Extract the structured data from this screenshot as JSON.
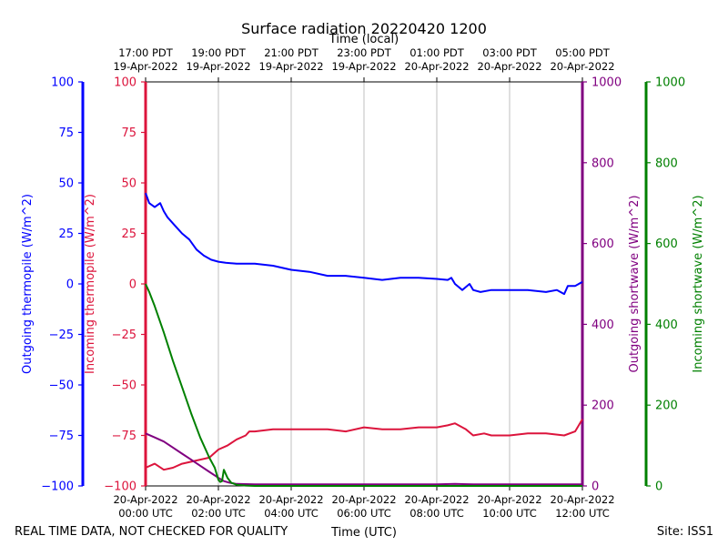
{
  "chart_data": {
    "type": "line",
    "title": "Surface radiation 20220420 1200",
    "top_axis_label": "Time (local)",
    "xlabel": "Time (UTC)",
    "footer_left": "REAL TIME DATA, NOT CHECKED FOR QUALITY",
    "footer_right": "Site: ISS1",
    "x_range_hours": [
      0,
      12
    ],
    "grid": "vertical",
    "x_ticks": [
      {
        "hour": 0,
        "utc": [
          "20-Apr-2022",
          "00:00 UTC"
        ],
        "local": [
          "17:00 PDT",
          "19-Apr-2022"
        ]
      },
      {
        "hour": 2,
        "utc": [
          "20-Apr-2022",
          "02:00 UTC"
        ],
        "local": [
          "19:00 PDT",
          "19-Apr-2022"
        ]
      },
      {
        "hour": 4,
        "utc": [
          "20-Apr-2022",
          "04:00 UTC"
        ],
        "local": [
          "21:00 PDT",
          "19-Apr-2022"
        ]
      },
      {
        "hour": 6,
        "utc": [
          "20-Apr-2022",
          "06:00 UTC"
        ],
        "local": [
          "23:00 PDT",
          "19-Apr-2022"
        ]
      },
      {
        "hour": 8,
        "utc": [
          "20-Apr-2022",
          "08:00 UTC"
        ],
        "local": [
          "01:00 PDT",
          "20-Apr-2022"
        ]
      },
      {
        "hour": 10,
        "utc": [
          "20-Apr-2022",
          "10:00 UTC"
        ],
        "local": [
          "03:00 PDT",
          "20-Apr-2022"
        ]
      },
      {
        "hour": 12,
        "utc": [
          "20-Apr-2022",
          "12:00 UTC"
        ],
        "local": [
          "05:00 PDT",
          "20-Apr-2022"
        ]
      }
    ],
    "axes": {
      "outgoing_thermopile": {
        "label": "Outgoing thermopile (W/m^2)",
        "color": "#0000ff",
        "ylim": [
          -100,
          100
        ],
        "ticks": [
          100,
          75,
          50,
          25,
          0,
          -25,
          -50,
          -75,
          -100
        ],
        "tick_labels": [
          "100",
          "75",
          "50",
          "25",
          "0",
          "−25",
          "−50",
          "−75",
          "−100"
        ]
      },
      "incoming_thermopile": {
        "label": "Incoming thermopile (W/m^2)",
        "color": "#dc143c",
        "ylim": [
          -100,
          100
        ],
        "ticks": [
          100,
          75,
          50,
          25,
          0,
          -25,
          -50,
          -75,
          -100
        ],
        "tick_labels": [
          "100",
          "75",
          "50",
          "25",
          "0",
          "−25",
          "−50",
          "−75",
          "−100"
        ]
      },
      "outgoing_shortwave": {
        "label": "Outgoing shortwave (W/m^2)",
        "color": "#800080",
        "ylim": [
          0,
          1000
        ],
        "ticks": [
          1000,
          800,
          600,
          400,
          200,
          0
        ],
        "tick_labels": [
          "1000",
          "800",
          "600",
          "400",
          "200",
          "0"
        ]
      },
      "incoming_shortwave": {
        "label": "Incoming shortwave (W/m^2)",
        "color": "#008000",
        "ylim": [
          0,
          1000
        ],
        "ticks": [
          1000,
          800,
          600,
          400,
          200,
          0
        ],
        "tick_labels": [
          "1000",
          "800",
          "600",
          "400",
          "200",
          "0"
        ]
      }
    },
    "series": [
      {
        "name": "Outgoing thermopile",
        "axis": "outgoing_thermopile",
        "color": "#0000ff",
        "x": [
          0,
          0.1,
          0.25,
          0.4,
          0.5,
          0.6,
          0.75,
          0.9,
          1.0,
          1.2,
          1.4,
          1.6,
          1.8,
          2.0,
          2.2,
          2.5,
          3.0,
          3.5,
          4.0,
          4.5,
          5.0,
          5.5,
          6.0,
          6.5,
          7.0,
          7.5,
          8.0,
          8.3,
          8.4,
          8.5,
          8.7,
          8.9,
          9.0,
          9.2,
          9.5,
          10.0,
          10.5,
          11.0,
          11.3,
          11.5,
          11.6,
          11.8,
          12.0
        ],
        "y": [
          45,
          40,
          38,
          40,
          36,
          33,
          30,
          27,
          25,
          22,
          17,
          14,
          12,
          11,
          10.5,
          10,
          10,
          9,
          7,
          6,
          4,
          4,
          3,
          2,
          3,
          3,
          2.5,
          2,
          3,
          0,
          -3,
          0,
          -3,
          -4,
          -3,
          -3,
          -3,
          -4,
          -3,
          -5,
          -1,
          -1,
          1
        ]
      },
      {
        "name": "Incoming thermopile",
        "axis": "incoming_thermopile",
        "color": "#dc143c",
        "x": [
          0,
          0.25,
          0.5,
          0.75,
          1.0,
          1.25,
          1.5,
          1.75,
          2.0,
          2.25,
          2.5,
          2.75,
          2.85,
          3.0,
          3.5,
          4.0,
          4.5,
          5.0,
          5.5,
          6.0,
          6.5,
          7.0,
          7.5,
          8.0,
          8.3,
          8.5,
          8.8,
          9.0,
          9.3,
          9.5,
          10.0,
          10.5,
          11.0,
          11.5,
          11.8,
          12.0
        ],
        "y": [
          -91,
          -89,
          -92,
          -91,
          -89,
          -88,
          -87,
          -86,
          -82,
          -80,
          -77,
          -75,
          -73,
          -73,
          -72,
          -72,
          -72,
          -72,
          -73,
          -71,
          -72,
          -72,
          -71,
          -71,
          -70,
          -69,
          -72,
          -75,
          -74,
          -75,
          -75,
          -74,
          -74,
          -75,
          -73,
          -67
        ]
      },
      {
        "name": "Outgoing shortwave",
        "axis": "outgoing_shortwave",
        "color": "#800080",
        "x": [
          0,
          0.25,
          0.5,
          0.75,
          1.0,
          1.25,
          1.5,
          1.75,
          2.0,
          2.15,
          2.3,
          2.5,
          3.0,
          4.0,
          5.0,
          6.0,
          7.0,
          8.0,
          8.5,
          9.0,
          10.0,
          11.0,
          12.0
        ],
        "y": [
          130,
          120,
          110,
          95,
          80,
          65,
          50,
          35,
          20,
          12,
          8,
          5,
          4,
          4,
          4,
          4,
          4,
          4,
          5,
          4,
          4,
          4,
          4
        ]
      },
      {
        "name": "Incoming shortwave",
        "axis": "incoming_shortwave",
        "color": "#008000",
        "x": [
          0,
          0.1,
          0.25,
          0.5,
          0.75,
          1.0,
          1.25,
          1.5,
          1.75,
          1.9,
          2.0,
          2.05,
          2.1,
          2.15,
          2.2,
          2.25,
          2.35,
          2.5,
          2.75,
          3.0,
          4.0,
          5.0,
          6.0,
          7.0,
          8.0,
          9.0,
          10.0,
          11.0,
          12.0
        ],
        "y": [
          500,
          480,
          445,
          380,
          310,
          245,
          180,
          120,
          70,
          45,
          15,
          10,
          12,
          40,
          30,
          20,
          8,
          3,
          1,
          0,
          0,
          0,
          0,
          0,
          0,
          0,
          0,
          0,
          0
        ]
      }
    ]
  }
}
